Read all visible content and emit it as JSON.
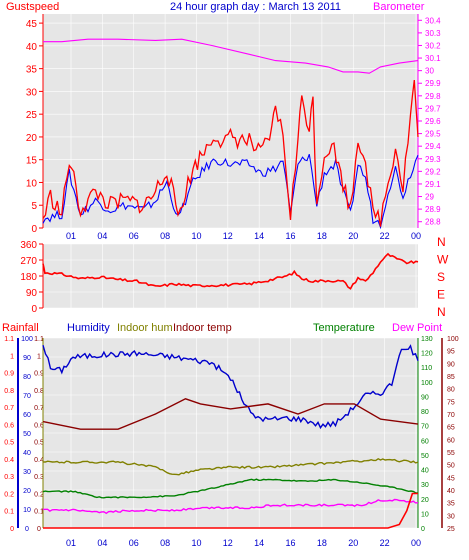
{
  "header": {
    "gust_label": "Gustspeed",
    "title": "24 hour graph day : March 13 2011",
    "baro_label": "Barometer"
  },
  "colors": {
    "background": "#e6e6e6",
    "gust": "#ff0000",
    "wind": "#0000ff",
    "baro": "#ff00ff",
    "direction": "#ff0000",
    "humidity": "#0000cc",
    "indoor_hum": "#808000",
    "indoor_temp": "#8b0000",
    "temperature": "#008000",
    "dew_point": "#ff00ff",
    "rainfall": "#ff0000",
    "title": "#0000cc"
  },
  "time_ticks": [
    "01",
    "04",
    "06",
    "08",
    "10",
    "12",
    "14",
    "16",
    "18",
    "20",
    "22",
    "00"
  ],
  "chart_data": [
    {
      "type": "line",
      "name": "wind-and-barometer",
      "x": [
        "01",
        "04",
        "06",
        "08",
        "10",
        "12",
        "14",
        "16",
        "18",
        "20",
        "22",
        "00"
      ],
      "left_axis": {
        "label": "Gustspeed",
        "ticks": [
          "0",
          "5",
          "10",
          "15",
          "20",
          "25",
          "30",
          "35",
          "40",
          "45"
        ],
        "ylim": [
          0,
          47
        ]
      },
      "right_axis": {
        "label": "Barometer",
        "ticks": [
          "28.8",
          "28.9",
          "29",
          "29.1",
          "29.2",
          "29.3",
          "29.4",
          "29.5",
          "29.6",
          "29.7",
          "29.8",
          "29.9",
          "30",
          "30.1",
          "30.2",
          "30.3",
          "30.4"
        ],
        "ylim": [
          28.75,
          30.45
        ]
      },
      "series": [
        {
          "key": "baro",
          "axis": "right",
          "points": [
            [
              0,
              30.23
            ],
            [
              0.05,
              30.23
            ],
            [
              0.12,
              30.25
            ],
            [
              0.2,
              30.25
            ],
            [
              0.3,
              30.24
            ],
            [
              0.37,
              30.25
            ],
            [
              0.45,
              30.2
            ],
            [
              0.55,
              30.13
            ],
            [
              0.62,
              30.08
            ],
            [
              0.7,
              30.06
            ],
            [
              0.76,
              30.03
            ],
            [
              0.8,
              29.99
            ],
            [
              0.84,
              29.99
            ],
            [
              0.87,
              29.98
            ],
            [
              0.9,
              30.03
            ],
            [
              0.95,
              30.06
            ],
            [
              1,
              30.08
            ]
          ]
        },
        {
          "key": "wind",
          "axis": "left",
          "points": [
            [
              0,
              2
            ],
            [
              0.05,
              3
            ],
            [
              0.07,
              12
            ],
            [
              0.1,
              3
            ],
            [
              0.14,
              6
            ],
            [
              0.18,
              4
            ],
            [
              0.22,
              5
            ],
            [
              0.27,
              4
            ],
            [
              0.3,
              6
            ],
            [
              0.33,
              10
            ],
            [
              0.36,
              2
            ],
            [
              0.4,
              10
            ],
            [
              0.43,
              13
            ],
            [
              0.46,
              15
            ],
            [
              0.5,
              14
            ],
            [
              0.55,
              14
            ],
            [
              0.58,
              12
            ],
            [
              0.62,
              13
            ],
            [
              0.64,
              15
            ],
            [
              0.66,
              3
            ],
            [
              0.68,
              14
            ],
            [
              0.71,
              16
            ],
            [
              0.73,
              5
            ],
            [
              0.75,
              12
            ],
            [
              0.78,
              14
            ],
            [
              0.8,
              8
            ],
            [
              0.82,
              3
            ],
            [
              0.84,
              14
            ],
            [
              0.86,
              11
            ],
            [
              0.88,
              2
            ],
            [
              0.9,
              1
            ],
            [
              0.92,
              8
            ],
            [
              0.94,
              13
            ],
            [
              0.96,
              7
            ],
            [
              0.98,
              12
            ],
            [
              1,
              16
            ]
          ]
        },
        {
          "key": "gust",
          "axis": "left",
          "points": [
            [
              0,
              2
            ],
            [
              0.02,
              7
            ],
            [
              0.05,
              3
            ],
            [
              0.07,
              15
            ],
            [
              0.1,
              4
            ],
            [
              0.14,
              8
            ],
            [
              0.18,
              5
            ],
            [
              0.22,
              6
            ],
            [
              0.27,
              5
            ],
            [
              0.3,
              8
            ],
            [
              0.33,
              13
            ],
            [
              0.36,
              3
            ],
            [
              0.4,
              13
            ],
            [
              0.43,
              17
            ],
            [
              0.46,
              21
            ],
            [
              0.48,
              18
            ],
            [
              0.5,
              20
            ],
            [
              0.55,
              19
            ],
            [
              0.58,
              16
            ],
            [
              0.61,
              21
            ],
            [
              0.62,
              27
            ],
            [
              0.64,
              20
            ],
            [
              0.66,
              3
            ],
            [
              0.68,
              19
            ],
            [
              0.69,
              29
            ],
            [
              0.71,
              22
            ],
            [
              0.72,
              28
            ],
            [
              0.73,
              6
            ],
            [
              0.75,
              16
            ],
            [
              0.77,
              19
            ],
            [
              0.8,
              10
            ],
            [
              0.82,
              4
            ],
            [
              0.84,
              20
            ],
            [
              0.86,
              15
            ],
            [
              0.88,
              3
            ],
            [
              0.9,
              2
            ],
            [
              0.92,
              10
            ],
            [
              0.94,
              18
            ],
            [
              0.96,
              9
            ],
            [
              0.98,
              25
            ],
            [
              0.99,
              32
            ],
            [
              1,
              20
            ]
          ]
        }
      ]
    },
    {
      "type": "line",
      "name": "wind-direction",
      "left_axis": {
        "ticks": [
          "0",
          "90",
          "180",
          "270",
          "360"
        ],
        "ylim": [
          0,
          360
        ]
      },
      "right_labels": [
        "N",
        "W",
        "S",
        "E",
        "N"
      ],
      "series": [
        {
          "key": "direction",
          "points": [
            [
              0,
              250
            ],
            [
              0.005,
              200
            ],
            [
              0.05,
              190
            ],
            [
              0.1,
              165
            ],
            [
              0.15,
              175
            ],
            [
              0.2,
              160
            ],
            [
              0.25,
              150
            ],
            [
              0.3,
              120
            ],
            [
              0.35,
              135
            ],
            [
              0.4,
              125
            ],
            [
              0.5,
              130
            ],
            [
              0.55,
              135
            ],
            [
              0.6,
              155
            ],
            [
              0.65,
              180
            ],
            [
              0.67,
              200
            ],
            [
              0.69,
              165
            ],
            [
              0.72,
              150
            ],
            [
              0.76,
              155
            ],
            [
              0.8,
              150
            ],
            [
              0.82,
              110
            ],
            [
              0.84,
              170
            ],
            [
              0.86,
              150
            ],
            [
              0.88,
              200
            ],
            [
              0.9,
              260
            ],
            [
              0.92,
              300
            ],
            [
              0.95,
              270
            ],
            [
              0.97,
              255
            ],
            [
              1,
              260
            ]
          ]
        }
      ]
    },
    {
      "type": "line",
      "name": "temperature-humidity-rain",
      "headers": {
        "rainfall": "Rainfall",
        "humidity": "Humidity",
        "indoor_hum": "Indoor hum",
        "indoor_temp": "Indoor temp",
        "temperature": "Temperature",
        "dew_point": "Dew Point"
      },
      "axes": {
        "rainfall": [
          "0",
          "0.1",
          "0.2",
          "0.3",
          "0.4",
          "0.5",
          "0.6",
          "0.7",
          "0.8",
          "0.9",
          "1",
          "1.1"
        ],
        "humidity": [
          "0",
          "10",
          "20",
          "30",
          "40",
          "50",
          "60",
          "70",
          "80",
          "90",
          "100"
        ],
        "indoor_left": [
          "0",
          "0.1",
          "0.2",
          "0.3",
          "0.4",
          "0.5",
          "0.6",
          "0.7",
          "0.8",
          "0.9",
          "1",
          "1.1"
        ],
        "temperature": [
          "0",
          "10",
          "20",
          "30",
          "40",
          "50",
          "60",
          "70",
          "80",
          "90",
          "100",
          "110",
          "120",
          "130"
        ],
        "dew_point": [
          "25",
          "30",
          "35",
          "40",
          "45",
          "50",
          "55",
          "60",
          "65",
          "70",
          "75",
          "80",
          "85",
          "90",
          "95",
          "100"
        ]
      },
      "series": [
        {
          "key": "humidity",
          "scale": [
            0,
            100
          ],
          "points": [
            [
              0,
              97
            ],
            [
              0.02,
              84
            ],
            [
              0.05,
              83
            ],
            [
              0.08,
              90
            ],
            [
              0.15,
              91
            ],
            [
              0.25,
              92
            ],
            [
              0.35,
              90
            ],
            [
              0.45,
              87
            ],
            [
              0.5,
              79
            ],
            [
              0.53,
              68
            ],
            [
              0.56,
              59
            ],
            [
              0.6,
              57
            ],
            [
              0.65,
              58
            ],
            [
              0.7,
              57
            ],
            [
              0.74,
              54
            ],
            [
              0.78,
              55
            ],
            [
              0.82,
              62
            ],
            [
              0.86,
              70
            ],
            [
              0.9,
              71
            ],
            [
              0.93,
              76
            ],
            [
              0.95,
              92
            ],
            [
              0.98,
              95
            ],
            [
              1,
              88
            ]
          ]
        },
        {
          "key": "indoor_temp",
          "scale": [
            25,
            100
          ],
          "points": [
            [
              0,
              67
            ],
            [
              0.1,
              64
            ],
            [
              0.2,
              64
            ],
            [
              0.3,
              70
            ],
            [
              0.38,
              76
            ],
            [
              0.42,
              74
            ],
            [
              0.5,
              72
            ],
            [
              0.6,
              74
            ],
            [
              0.68,
              70
            ],
            [
              0.75,
              74
            ],
            [
              0.83,
              74
            ],
            [
              0.9,
              68
            ],
            [
              1,
              66
            ]
          ]
        },
        {
          "key": "indoor_hum",
          "scale": [
            25,
            100
          ],
          "points": [
            [
              0,
              51
            ],
            [
              0.2,
              51
            ],
            [
              0.3,
              49
            ],
            [
              0.35,
              46
            ],
            [
              0.42,
              48
            ],
            [
              0.5,
              49
            ],
            [
              0.6,
              49
            ],
            [
              0.7,
              50
            ],
            [
              0.8,
              51
            ],
            [
              0.9,
              52
            ],
            [
              1,
              51
            ]
          ]
        },
        {
          "key": "temperature",
          "scale": [
            0,
            130
          ],
          "points": [
            [
              0,
              25
            ],
            [
              0.08,
              25
            ],
            [
              0.15,
              21
            ],
            [
              0.25,
              21
            ],
            [
              0.35,
              22
            ],
            [
              0.45,
              27
            ],
            [
              0.55,
              33
            ],
            [
              0.62,
              33
            ],
            [
              0.7,
              32
            ],
            [
              0.78,
              33
            ],
            [
              0.85,
              31
            ],
            [
              0.9,
              29
            ],
            [
              0.95,
              27
            ],
            [
              1,
              24
            ]
          ]
        },
        {
          "key": "dew_point",
          "scale": [
            25,
            100
          ],
          "points": [
            [
              0,
              32
            ],
            [
              0.08,
              32
            ],
            [
              0.15,
              31
            ],
            [
              0.25,
              32
            ],
            [
              0.35,
              32
            ],
            [
              0.45,
              33
            ],
            [
              0.55,
              33
            ],
            [
              0.62,
              34
            ],
            [
              0.7,
              34
            ],
            [
              0.78,
              34
            ],
            [
              0.85,
              34
            ],
            [
              0.9,
              36
            ],
            [
              0.95,
              36
            ],
            [
              1,
              35
            ]
          ]
        },
        {
          "key": "rainfall",
          "scale": [
            0,
            1.1
          ],
          "points": [
            [
              0,
              0
            ],
            [
              0.92,
              0
            ],
            [
              0.95,
              0.02
            ],
            [
              0.97,
              0.1
            ],
            [
              0.985,
              0.2
            ],
            [
              1,
              0.2
            ]
          ]
        }
      ]
    }
  ]
}
